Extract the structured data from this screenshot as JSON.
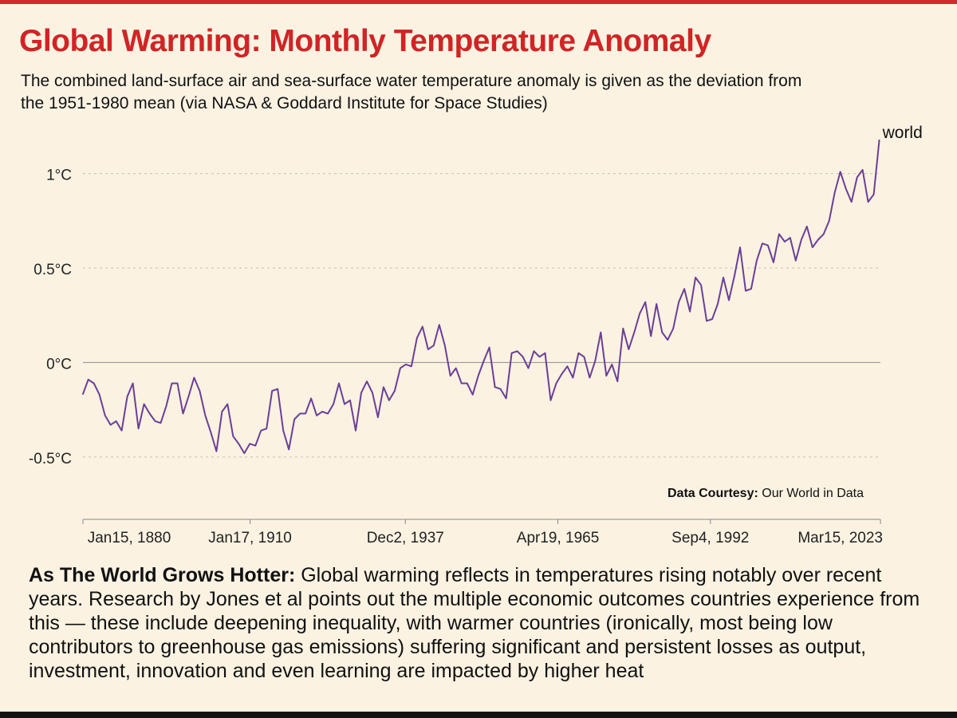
{
  "header": {
    "title": "Global Warming: Monthly Temperature Anomaly",
    "subtitle": "The combined land-surface air and sea-surface water temperature anomaly is given as the deviation from the 1951-1980 mean (via NASA & Goddard Institute for Space Studies)"
  },
  "source": {
    "label": "Data Courtesy:",
    "value": " Our World in Data"
  },
  "caption": {
    "lead": "As The World Grows Hotter:",
    "body": " Global warming reflects in temperatures rising notably over recent years. Research by Jones et al points out the multiple economic outcomes countries experience from this — these include deepening inequality, with warmer countries (ironically, most being low contributors to greenhouse gas emissions) suffering significant and persistent losses as output, investment, innovation and even learning are impacted by higher heat"
  },
  "colors": {
    "line": "#6a3f96",
    "title": "#d02425",
    "background": "#fbf2e2"
  },
  "chart_data": {
    "type": "line",
    "title": "",
    "xlabel": "",
    "ylabel": "",
    "ylim": [
      -0.83,
      1.37
    ],
    "xlim": [
      "1880-01-15",
      "2023-03-15"
    ],
    "grid": true,
    "y_ticks": [
      {
        "value": 1.0,
        "label": "1°C"
      },
      {
        "value": 0.5,
        "label": "0.5°C"
      },
      {
        "value": 0.0,
        "label": "0°C"
      },
      {
        "value": -0.5,
        "label": "-0.5°C"
      }
    ],
    "x_ticks": [
      {
        "date": "1880-01-15",
        "label": "Jan15, 1880"
      },
      {
        "date": "1910-01-17",
        "label": "Jan17, 1910"
      },
      {
        "date": "1937-12-02",
        "label": "Dec2, 1937"
      },
      {
        "date": "1965-04-19",
        "label": "Apr19, 1965"
      },
      {
        "date": "1992-09-04",
        "label": "Sep4, 1992"
      },
      {
        "date": "2023-03-15",
        "label": "Mar15, 2023"
      }
    ],
    "series": [
      {
        "name": "world",
        "x": [
          1880.0,
          1881.0,
          1882.0,
          1883.0,
          1884.0,
          1885.0,
          1886.0,
          1887.0,
          1888.0,
          1889.0,
          1890.0,
          1891.0,
          1892.0,
          1893.0,
          1894.0,
          1895.0,
          1896.0,
          1897.0,
          1898.0,
          1899.0,
          1900.0,
          1901.0,
          1902.0,
          1903.0,
          1904.0,
          1905.0,
          1906.0,
          1907.0,
          1908.0,
          1909.0,
          1910.0,
          1911.0,
          1912.0,
          1913.0,
          1914.0,
          1915.0,
          1916.0,
          1917.0,
          1918.0,
          1919.0,
          1920.0,
          1921.0,
          1922.0,
          1923.0,
          1924.0,
          1925.0,
          1926.0,
          1927.0,
          1928.0,
          1929.0,
          1930.0,
          1931.0,
          1932.0,
          1933.0,
          1934.0,
          1935.0,
          1936.0,
          1937.0,
          1938.0,
          1939.0,
          1940.0,
          1941.0,
          1942.0,
          1943.0,
          1944.0,
          1945.0,
          1946.0,
          1947.0,
          1948.0,
          1949.0,
          1950.0,
          1951.0,
          1952.0,
          1953.0,
          1954.0,
          1955.0,
          1956.0,
          1957.0,
          1958.0,
          1959.0,
          1960.0,
          1961.0,
          1962.0,
          1963.0,
          1964.0,
          1965.0,
          1966.0,
          1967.0,
          1968.0,
          1969.0,
          1970.0,
          1971.0,
          1972.0,
          1973.0,
          1974.0,
          1975.0,
          1976.0,
          1977.0,
          1978.0,
          1979.0,
          1980.0,
          1981.0,
          1982.0,
          1983.0,
          1984.0,
          1985.0,
          1986.0,
          1987.0,
          1988.0,
          1989.0,
          1990.0,
          1991.0,
          1992.0,
          1993.0,
          1994.0,
          1995.0,
          1996.0,
          1997.0,
          1998.0,
          1999.0,
          2000.0,
          2001.0,
          2002.0,
          2003.0,
          2004.0,
          2005.0,
          2006.0,
          2007.0,
          2008.0,
          2009.0,
          2010.0,
          2011.0,
          2012.0,
          2013.0,
          2014.0,
          2015.0,
          2016.0,
          2017.0,
          2018.0,
          2019.0,
          2020.0,
          2021.0,
          2022.0,
          2023.0
        ],
        "values": [
          -0.17,
          -0.09,
          -0.11,
          -0.17,
          -0.28,
          -0.33,
          -0.31,
          -0.36,
          -0.18,
          -0.11,
          -0.35,
          -0.22,
          -0.27,
          -0.31,
          -0.32,
          -0.23,
          -0.11,
          -0.11,
          -0.27,
          -0.18,
          -0.08,
          -0.15,
          -0.28,
          -0.37,
          -0.47,
          -0.26,
          -0.22,
          -0.39,
          -0.43,
          -0.48,
          -0.43,
          -0.44,
          -0.36,
          -0.35,
          -0.15,
          -0.14,
          -0.36,
          -0.46,
          -0.3,
          -0.27,
          -0.27,
          -0.19,
          -0.28,
          -0.26,
          -0.27,
          -0.22,
          -0.11,
          -0.22,
          -0.2,
          -0.36,
          -0.16,
          -0.1,
          -0.16,
          -0.29,
          -0.13,
          -0.2,
          -0.15,
          -0.03,
          -0.01,
          -0.02,
          0.13,
          0.19,
          0.07,
          0.09,
          0.2,
          0.09,
          -0.07,
          -0.03,
          -0.11,
          -0.11,
          -0.17,
          -0.07,
          0.01,
          0.08,
          -0.13,
          -0.14,
          -0.19,
          0.05,
          0.06,
          0.03,
          -0.03,
          0.06,
          0.03,
          0.05,
          -0.2,
          -0.11,
          -0.06,
          -0.02,
          -0.08,
          0.05,
          0.03,
          -0.08,
          0.01,
          0.16,
          -0.07,
          -0.01,
          -0.1,
          0.18,
          0.07,
          0.16,
          0.26,
          0.32,
          0.14,
          0.31,
          0.16,
          0.12,
          0.18,
          0.32,
          0.39,
          0.27,
          0.45,
          0.41,
          0.22,
          0.23,
          0.31,
          0.45,
          0.33,
          0.46,
          0.61,
          0.38,
          0.39,
          0.54,
          0.63,
          0.62,
          0.53,
          0.68,
          0.64,
          0.66,
          0.54,
          0.65,
          0.72,
          0.61,
          0.65,
          0.68,
          0.75,
          0.9,
          1.01,
          0.92,
          0.85,
          0.98,
          1.02,
          0.85,
          0.89,
          1.18
        ]
      }
    ]
  }
}
